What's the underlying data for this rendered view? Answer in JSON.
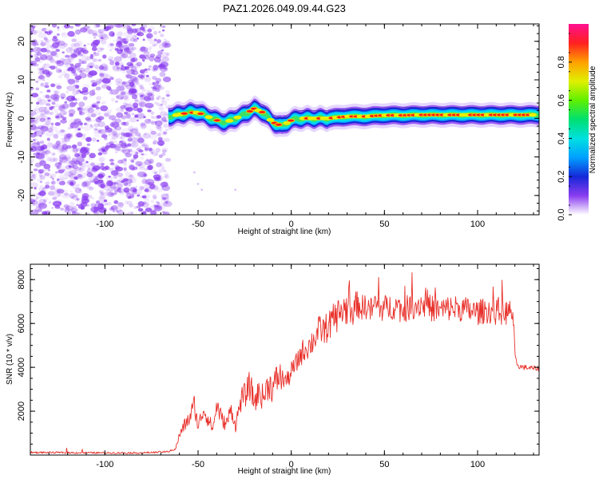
{
  "title": "PAZ1.2026.049.09.44.G23",
  "colors": {
    "snr_line": "#e8302a",
    "noise_dot": "#8a3cf0",
    "ridge_edge": "#1428d8"
  },
  "chart_data": [
    {
      "type": "heatmap",
      "title": "PAZ1.2026.049.09.44.G23",
      "xlabel": "Height of straight line (km)",
      "ylabel": "Frequency (Hz)",
      "xlim": [
        -140,
        133
      ],
      "ylim": [
        -25,
        24.5
      ],
      "x_ticks": [
        -100,
        -50,
        0,
        50,
        100
      ],
      "x_tick_labels": [
        "-100",
        "-50",
        "0",
        "50",
        "100"
      ],
      "y_ticks": [
        -20,
        -10,
        0,
        10,
        20
      ],
      "y_tick_labels": [
        "-20",
        "-10",
        "0",
        "10",
        "20"
      ],
      "noise_region_end_km": -66,
      "ridge": {
        "name": "dominant frequency",
        "x": [
          -66,
          -60,
          -55,
          -50,
          -45,
          -40,
          -35,
          -30,
          -25,
          -20,
          -15,
          -10,
          -5,
          0,
          5,
          10,
          20,
          30,
          40,
          50,
          60,
          70,
          80,
          90,
          100,
          110,
          120,
          133
        ],
        "y": [
          0.5,
          1.0,
          1.5,
          1.5,
          0.5,
          -0.5,
          -1.0,
          0.0,
          1.0,
          2.5,
          1.5,
          -1.0,
          -2.0,
          -0.5,
          0.0,
          0.0,
          0.0,
          0.5,
          0.5,
          0.8,
          0.8,
          0.9,
          0.9,
          0.9,
          0.9,
          0.9,
          0.9,
          0.9
        ]
      },
      "colorbar": {
        "label": "Normalized spectral amplitude",
        "range": [
          0.0,
          1.0
        ],
        "ticks": [
          0.0,
          0.2,
          0.4,
          0.6,
          0.8
        ],
        "tick_labels": [
          "0.0",
          "0.2",
          "0.4",
          "0.6",
          "0.8"
        ],
        "colormap": [
          "#ffffff",
          "#8a3cf0",
          "#1428d8",
          "#00a0ff",
          "#00e0e0",
          "#00e070",
          "#60f000",
          "#e0f000",
          "#ffa000",
          "#ff2020",
          "#ff1090"
        ]
      }
    },
    {
      "type": "line",
      "xlabel": "Height of straight line (km)",
      "ylabel": "SNR (10 * v/v)",
      "xlim": [
        -140,
        133
      ],
      "ylim": [
        0,
        8700
      ],
      "x_ticks": [
        -100,
        -50,
        0,
        50,
        100
      ],
      "x_tick_labels": [
        "-100",
        "-50",
        "0",
        "50",
        "100"
      ],
      "y_ticks": [
        2000,
        4000,
        6000,
        8000
      ],
      "y_tick_labels": [
        "2000",
        "4000",
        "6000",
        "8000"
      ],
      "series": [
        {
          "name": "SNR",
          "x": [
            -140,
            -120,
            -100,
            -80,
            -66,
            -62,
            -60,
            -57,
            -55,
            -52,
            -50,
            -47,
            -45,
            -42,
            -40,
            -37,
            -35,
            -32,
            -30,
            -27,
            -25,
            -22,
            -20,
            -17,
            -15,
            -12,
            -10,
            -7,
            -5,
            -2,
            0,
            3,
            5,
            8,
            10,
            13,
            15,
            18,
            20,
            23,
            25,
            28,
            30,
            33,
            35,
            38,
            40,
            43,
            45,
            48,
            50,
            55,
            60,
            65,
            70,
            75,
            80,
            85,
            90,
            95,
            100,
            105,
            110,
            115,
            119,
            120,
            121,
            122,
            125,
            130,
            133
          ],
          "y": [
            120,
            110,
            100,
            100,
            150,
            300,
            900,
            1400,
            1600,
            2300,
            1300,
            2100,
            1700,
            1200,
            2300,
            1600,
            1400,
            2100,
            1300,
            2500,
            2700,
            3200,
            2400,
            2900,
            2600,
            3300,
            3000,
            3600,
            3500,
            3400,
            3800,
            4200,
            4600,
            4900,
            5000,
            5400,
            5700,
            5700,
            5900,
            6200,
            6400,
            6600,
            6700,
            6500,
            6900,
            6700,
            6800,
            6600,
            6900,
            6700,
            6700,
            6800,
            6600,
            6800,
            6900,
            6700,
            6600,
            6700,
            6700,
            6600,
            6500,
            6600,
            6500,
            6500,
            6500,
            4500,
            4200,
            4050,
            4000,
            3950,
            3950
          ]
        }
      ]
    }
  ]
}
